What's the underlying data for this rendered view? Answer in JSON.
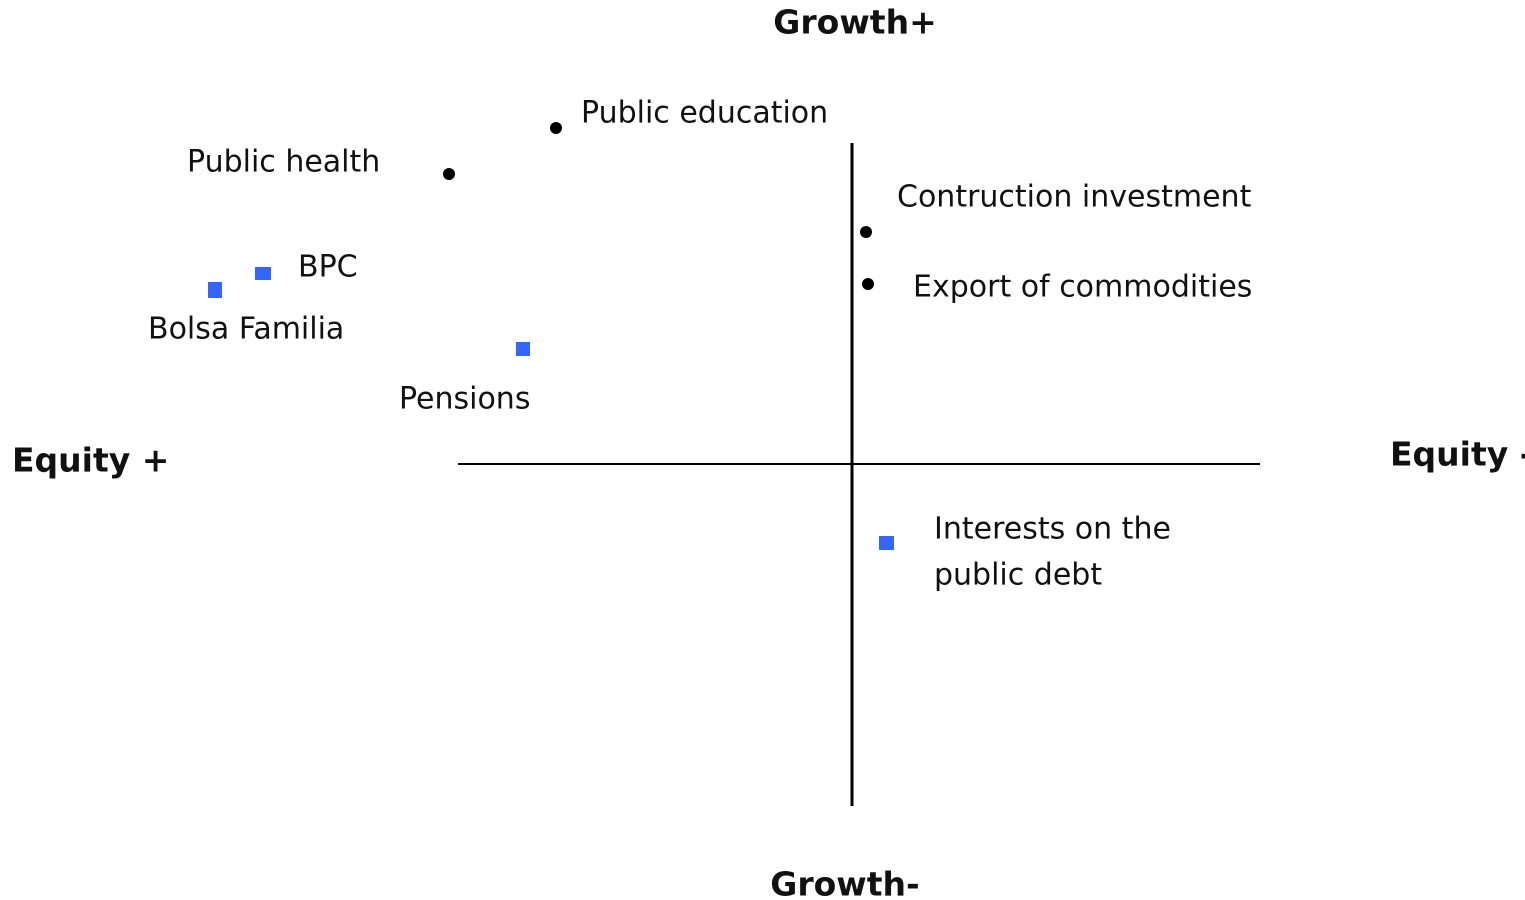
{
  "axes": {
    "top": "Growth+",
    "bottom": "Growth-",
    "left": "Equity +",
    "right": "Equity -"
  },
  "nodes": [
    {
      "label": "Public education"
    },
    {
      "label": "Public health"
    },
    {
      "label": "BPC"
    },
    {
      "label": "Bolsa Familia"
    },
    {
      "label": "Pensions"
    },
    {
      "label": "Contruction investment"
    },
    {
      "label": "Export of commodities"
    },
    {
      "label": [
        "Interests on the",
        "public debt"
      ]
    }
  ]
}
